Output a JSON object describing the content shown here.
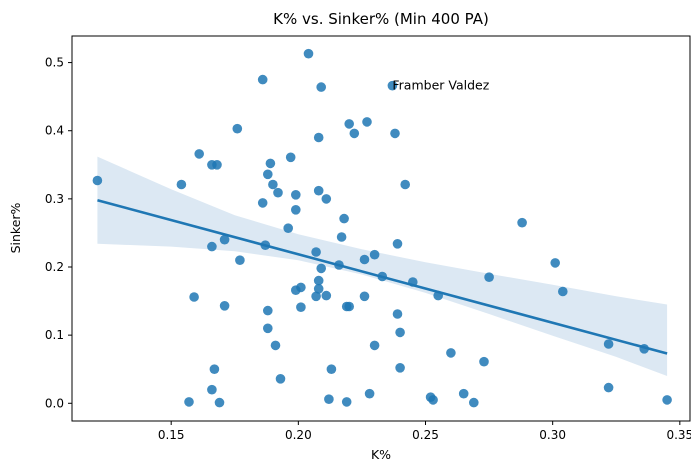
{
  "chart_data": {
    "type": "scatter",
    "title": "K% vs. Sinker% (Min 400 PA)",
    "xlabel": "K%",
    "ylabel": "Sinker%",
    "xlim": [
      0.111,
      0.354
    ],
    "ylim": [
      -0.026,
      0.539
    ],
    "x_ticks": [
      0.15,
      0.2,
      0.25,
      0.3,
      0.35
    ],
    "x_tick_labels": [
      "0.15",
      "0.20",
      "0.25",
      "0.30",
      "0.35"
    ],
    "y_ticks": [
      0.0,
      0.1,
      0.2,
      0.3,
      0.4,
      0.5
    ],
    "y_tick_labels": [
      "0.0",
      "0.1",
      "0.2",
      "0.3",
      "0.4",
      "0.5"
    ],
    "point_color": "#1f77b4",
    "line_color": "#1f77b4",
    "ci_color": "#dce8f3",
    "annotation": {
      "text": "Framber Valdez",
      "x": 0.237,
      "y": 0.466
    },
    "regression": {
      "x": [
        0.121,
        0.345
      ],
      "y": [
        0.298,
        0.073
      ]
    },
    "confidence_band": {
      "x": [
        0.121,
        0.15,
        0.175,
        0.2,
        0.225,
        0.25,
        0.275,
        0.3,
        0.325,
        0.345
      ],
      "upper": [
        0.362,
        0.314,
        0.276,
        0.248,
        0.226,
        0.207,
        0.19,
        0.174,
        0.157,
        0.145
      ],
      "lower": [
        0.234,
        0.23,
        0.223,
        0.21,
        0.189,
        0.162,
        0.131,
        0.099,
        0.068,
        0.04
      ]
    },
    "points": [
      {
        "x": 0.121,
        "y": 0.327
      },
      {
        "x": 0.154,
        "y": 0.321
      },
      {
        "x": 0.157,
        "y": 0.002
      },
      {
        "x": 0.159,
        "y": 0.156
      },
      {
        "x": 0.161,
        "y": 0.366
      },
      {
        "x": 0.166,
        "y": 0.35
      },
      {
        "x": 0.166,
        "y": 0.23
      },
      {
        "x": 0.166,
        "y": 0.02
      },
      {
        "x": 0.167,
        "y": 0.05
      },
      {
        "x": 0.168,
        "y": 0.35
      },
      {
        "x": 0.169,
        "y": 0.001
      },
      {
        "x": 0.171,
        "y": 0.24
      },
      {
        "x": 0.171,
        "y": 0.143
      },
      {
        "x": 0.176,
        "y": 0.403
      },
      {
        "x": 0.177,
        "y": 0.21
      },
      {
        "x": 0.186,
        "y": 0.475
      },
      {
        "x": 0.186,
        "y": 0.294
      },
      {
        "x": 0.187,
        "y": 0.232
      },
      {
        "x": 0.188,
        "y": 0.336
      },
      {
        "x": 0.188,
        "y": 0.136
      },
      {
        "x": 0.188,
        "y": 0.11
      },
      {
        "x": 0.189,
        "y": 0.352
      },
      {
        "x": 0.19,
        "y": 0.321
      },
      {
        "x": 0.191,
        "y": 0.085
      },
      {
        "x": 0.192,
        "y": 0.309
      },
      {
        "x": 0.193,
        "y": 0.036
      },
      {
        "x": 0.196,
        "y": 0.257
      },
      {
        "x": 0.197,
        "y": 0.361
      },
      {
        "x": 0.199,
        "y": 0.306
      },
      {
        "x": 0.199,
        "y": 0.284
      },
      {
        "x": 0.199,
        "y": 0.166
      },
      {
        "x": 0.201,
        "y": 0.17
      },
      {
        "x": 0.201,
        "y": 0.141
      },
      {
        "x": 0.204,
        "y": 0.513
      },
      {
        "x": 0.207,
        "y": 0.222
      },
      {
        "x": 0.207,
        "y": 0.157
      },
      {
        "x": 0.208,
        "y": 0.39
      },
      {
        "x": 0.208,
        "y": 0.312
      },
      {
        "x": 0.208,
        "y": 0.18
      },
      {
        "x": 0.208,
        "y": 0.168
      },
      {
        "x": 0.209,
        "y": 0.464
      },
      {
        "x": 0.209,
        "y": 0.198
      },
      {
        "x": 0.211,
        "y": 0.3
      },
      {
        "x": 0.211,
        "y": 0.158
      },
      {
        "x": 0.212,
        "y": 0.006
      },
      {
        "x": 0.213,
        "y": 0.05
      },
      {
        "x": 0.216,
        "y": 0.203
      },
      {
        "x": 0.217,
        "y": 0.244
      },
      {
        "x": 0.218,
        "y": 0.271
      },
      {
        "x": 0.219,
        "y": 0.002
      },
      {
        "x": 0.219,
        "y": 0.142
      },
      {
        "x": 0.22,
        "y": 0.41
      },
      {
        "x": 0.22,
        "y": 0.142
      },
      {
        "x": 0.222,
        "y": 0.396
      },
      {
        "x": 0.226,
        "y": 0.211
      },
      {
        "x": 0.226,
        "y": 0.157
      },
      {
        "x": 0.227,
        "y": 0.413
      },
      {
        "x": 0.228,
        "y": 0.014
      },
      {
        "x": 0.23,
        "y": 0.218
      },
      {
        "x": 0.23,
        "y": 0.085
      },
      {
        "x": 0.233,
        "y": 0.186
      },
      {
        "x": 0.237,
        "y": 0.466
      },
      {
        "x": 0.238,
        "y": 0.396
      },
      {
        "x": 0.239,
        "y": 0.234
      },
      {
        "x": 0.239,
        "y": 0.131
      },
      {
        "x": 0.24,
        "y": 0.104
      },
      {
        "x": 0.24,
        "y": 0.052
      },
      {
        "x": 0.242,
        "y": 0.321
      },
      {
        "x": 0.245,
        "y": 0.178
      },
      {
        "x": 0.252,
        "y": 0.009
      },
      {
        "x": 0.253,
        "y": 0.005
      },
      {
        "x": 0.255,
        "y": 0.158
      },
      {
        "x": 0.26,
        "y": 0.074
      },
      {
        "x": 0.265,
        "y": 0.014
      },
      {
        "x": 0.269,
        "y": 0.001
      },
      {
        "x": 0.273,
        "y": 0.061
      },
      {
        "x": 0.275,
        "y": 0.185
      },
      {
        "x": 0.288,
        "y": 0.265
      },
      {
        "x": 0.301,
        "y": 0.206
      },
      {
        "x": 0.304,
        "y": 0.164
      },
      {
        "x": 0.322,
        "y": 0.087
      },
      {
        "x": 0.322,
        "y": 0.023
      },
      {
        "x": 0.336,
        "y": 0.08
      },
      {
        "x": 0.345,
        "y": 0.005
      }
    ]
  }
}
